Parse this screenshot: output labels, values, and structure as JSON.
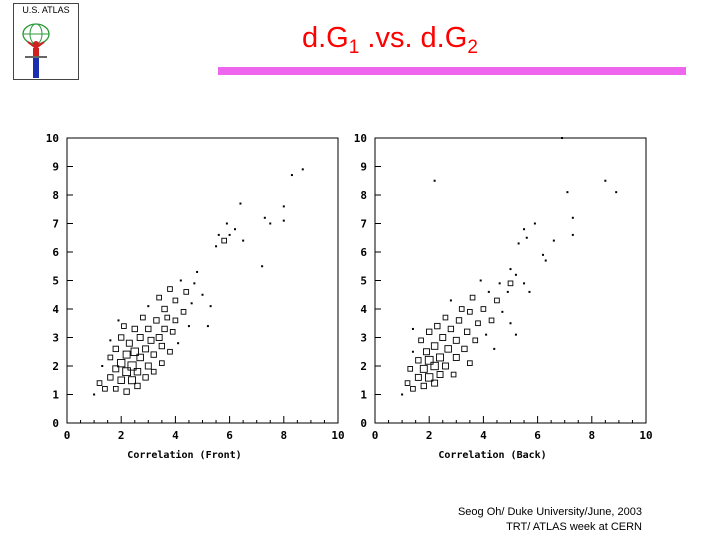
{
  "logo": {
    "text": "U.S. ATLAS"
  },
  "title": {
    "main_a": "d.G",
    "sub_a": "1",
    "middle": " .vs. d.G",
    "sub_b": "2"
  },
  "footer": {
    "line1": "Seog Oh/ Duke University/June, 2003",
    "line2": "TRT/ ATLAS week at CERN"
  },
  "colors": {
    "title": "#ff0000",
    "title_bar": "#ee66ee",
    "marks": "#000000"
  },
  "chart_data": [
    {
      "type": "scatter",
      "title": "",
      "xlabel": "Correlation (Front)",
      "ylabel": "",
      "xlim": [
        0,
        10
      ],
      "ylim": [
        0,
        10
      ],
      "xticks": [
        "0",
        "2",
        "4",
        "6",
        "8",
        "10"
      ],
      "yticks": [
        "0",
        "1",
        "2",
        "3",
        "4",
        "5",
        "6",
        "7",
        "8",
        "9",
        "10"
      ],
      "grid": false,
      "marker_style": "box size proportional to count",
      "points": [
        {
          "x": 1.0,
          "y": 1.0,
          "n": 1
        },
        {
          "x": 1.2,
          "y": 1.4,
          "n": 2
        },
        {
          "x": 1.4,
          "y": 1.2,
          "n": 2
        },
        {
          "x": 1.3,
          "y": 2.0,
          "n": 1
        },
        {
          "x": 1.6,
          "y": 1.6,
          "n": 3
        },
        {
          "x": 1.6,
          "y": 2.3,
          "n": 2
        },
        {
          "x": 1.6,
          "y": 2.9,
          "n": 1
        },
        {
          "x": 1.8,
          "y": 1.2,
          "n": 2
        },
        {
          "x": 1.8,
          "y": 1.9,
          "n": 4
        },
        {
          "x": 1.8,
          "y": 2.6,
          "n": 3
        },
        {
          "x": 1.9,
          "y": 3.6,
          "n": 1
        },
        {
          "x": 2.0,
          "y": 1.5,
          "n": 5
        },
        {
          "x": 2.0,
          "y": 2.1,
          "n": 7
        },
        {
          "x": 2.0,
          "y": 3.0,
          "n": 3
        },
        {
          "x": 2.1,
          "y": 3.4,
          "n": 2
        },
        {
          "x": 2.2,
          "y": 1.1,
          "n": 3
        },
        {
          "x": 2.2,
          "y": 1.8,
          "n": 8
        },
        {
          "x": 2.2,
          "y": 2.4,
          "n": 6
        },
        {
          "x": 2.3,
          "y": 2.8,
          "n": 4
        },
        {
          "x": 2.4,
          "y": 1.5,
          "n": 6
        },
        {
          "x": 2.4,
          "y": 2.0,
          "n": 9
        },
        {
          "x": 2.5,
          "y": 2.5,
          "n": 7
        },
        {
          "x": 2.5,
          "y": 3.3,
          "n": 3
        },
        {
          "x": 2.6,
          "y": 1.3,
          "n": 3
        },
        {
          "x": 2.6,
          "y": 1.8,
          "n": 5
        },
        {
          "x": 2.7,
          "y": 2.3,
          "n": 5
        },
        {
          "x": 2.7,
          "y": 3.0,
          "n": 4
        },
        {
          "x": 2.8,
          "y": 3.7,
          "n": 2
        },
        {
          "x": 2.9,
          "y": 1.6,
          "n": 3
        },
        {
          "x": 2.9,
          "y": 2.6,
          "n": 4
        },
        {
          "x": 3.0,
          "y": 2.0,
          "n": 4
        },
        {
          "x": 3.0,
          "y": 3.3,
          "n": 3
        },
        {
          "x": 3.0,
          "y": 4.1,
          "n": 1
        },
        {
          "x": 3.1,
          "y": 2.9,
          "n": 4
        },
        {
          "x": 3.2,
          "y": 1.8,
          "n": 2
        },
        {
          "x": 3.2,
          "y": 2.4,
          "n": 3
        },
        {
          "x": 3.3,
          "y": 3.6,
          "n": 3
        },
        {
          "x": 3.4,
          "y": 3.0,
          "n": 4
        },
        {
          "x": 3.4,
          "y": 4.4,
          "n": 2
        },
        {
          "x": 3.5,
          "y": 2.1,
          "n": 2
        },
        {
          "x": 3.5,
          "y": 2.7,
          "n": 3
        },
        {
          "x": 3.6,
          "y": 3.3,
          "n": 3
        },
        {
          "x": 3.6,
          "y": 4.0,
          "n": 3
        },
        {
          "x": 3.7,
          "y": 3.7,
          "n": 2
        },
        {
          "x": 3.8,
          "y": 2.5,
          "n": 2
        },
        {
          "x": 3.8,
          "y": 4.7,
          "n": 2
        },
        {
          "x": 3.9,
          "y": 3.2,
          "n": 2
        },
        {
          "x": 4.0,
          "y": 4.3,
          "n": 2
        },
        {
          "x": 4.0,
          "y": 3.6,
          "n": 2
        },
        {
          "x": 4.1,
          "y": 2.8,
          "n": 1
        },
        {
          "x": 4.2,
          "y": 5.0,
          "n": 1
        },
        {
          "x": 4.3,
          "y": 3.9,
          "n": 2
        },
        {
          "x": 4.4,
          "y": 4.6,
          "n": 2
        },
        {
          "x": 4.5,
          "y": 3.4,
          "n": 1
        },
        {
          "x": 4.6,
          "y": 4.2,
          "n": 1
        },
        {
          "x": 4.7,
          "y": 4.9,
          "n": 1
        },
        {
          "x": 4.8,
          "y": 5.3,
          "n": 1
        },
        {
          "x": 5.0,
          "y": 4.5,
          "n": 1
        },
        {
          "x": 5.2,
          "y": 3.4,
          "n": 1
        },
        {
          "x": 5.3,
          "y": 4.1,
          "n": 1
        },
        {
          "x": 5.5,
          "y": 6.2,
          "n": 1
        },
        {
          "x": 5.6,
          "y": 6.6,
          "n": 1
        },
        {
          "x": 5.8,
          "y": 6.4,
          "n": 2
        },
        {
          "x": 5.9,
          "y": 7.0,
          "n": 1
        },
        {
          "x": 6.0,
          "y": 6.6,
          "n": 1
        },
        {
          "x": 6.2,
          "y": 6.8,
          "n": 1
        },
        {
          "x": 6.4,
          "y": 7.7,
          "n": 1
        },
        {
          "x": 6.5,
          "y": 6.4,
          "n": 1
        },
        {
          "x": 7.2,
          "y": 5.5,
          "n": 1
        },
        {
          "x": 7.3,
          "y": 7.2,
          "n": 1
        },
        {
          "x": 7.5,
          "y": 7.0,
          "n": 1
        },
        {
          "x": 8.0,
          "y": 7.1,
          "n": 1
        },
        {
          "x": 8.0,
          "y": 7.6,
          "n": 1
        },
        {
          "x": 8.3,
          "y": 8.7,
          "n": 1
        },
        {
          "x": 8.7,
          "y": 8.9,
          "n": 1
        }
      ]
    },
    {
      "type": "scatter",
      "title": "",
      "xlabel": "Correlation (Back)",
      "ylabel": "",
      "xlim": [
        0,
        10
      ],
      "ylim": [
        0,
        10
      ],
      "xticks": [
        "0",
        "2",
        "4",
        "6",
        "8",
        "10"
      ],
      "yticks": [
        "0",
        "1",
        "2",
        "3",
        "4",
        "5",
        "6",
        "7",
        "8",
        "9",
        "10"
      ],
      "grid": false,
      "marker_style": "box size proportional to count",
      "points": [
        {
          "x": 1.0,
          "y": 1.0,
          "n": 1
        },
        {
          "x": 1.2,
          "y": 1.4,
          "n": 2
        },
        {
          "x": 1.3,
          "y": 1.9,
          "n": 2
        },
        {
          "x": 1.4,
          "y": 1.2,
          "n": 2
        },
        {
          "x": 1.4,
          "y": 2.5,
          "n": 1
        },
        {
          "x": 1.4,
          "y": 3.3,
          "n": 1
        },
        {
          "x": 1.6,
          "y": 1.6,
          "n": 4
        },
        {
          "x": 1.6,
          "y": 2.2,
          "n": 3
        },
        {
          "x": 1.7,
          "y": 2.9,
          "n": 2
        },
        {
          "x": 1.8,
          "y": 1.3,
          "n": 3
        },
        {
          "x": 1.8,
          "y": 1.9,
          "n": 6
        },
        {
          "x": 1.9,
          "y": 2.5,
          "n": 4
        },
        {
          "x": 2.0,
          "y": 1.6,
          "n": 7
        },
        {
          "x": 2.0,
          "y": 2.2,
          "n": 8
        },
        {
          "x": 2.0,
          "y": 3.2,
          "n": 3
        },
        {
          "x": 2.2,
          "y": 1.4,
          "n": 4
        },
        {
          "x": 2.2,
          "y": 2.0,
          "n": 7
        },
        {
          "x": 2.2,
          "y": 2.7,
          "n": 5
        },
        {
          "x": 2.3,
          "y": 3.4,
          "n": 3
        },
        {
          "x": 2.4,
          "y": 1.7,
          "n": 4
        },
        {
          "x": 2.4,
          "y": 2.3,
          "n": 6
        },
        {
          "x": 2.5,
          "y": 3.0,
          "n": 4
        },
        {
          "x": 2.6,
          "y": 3.7,
          "n": 2
        },
        {
          "x": 2.6,
          "y": 2.0,
          "n": 4
        },
        {
          "x": 2.7,
          "y": 2.6,
          "n": 5
        },
        {
          "x": 2.8,
          "y": 3.3,
          "n": 3
        },
        {
          "x": 2.8,
          "y": 4.3,
          "n": 1
        },
        {
          "x": 2.9,
          "y": 1.7,
          "n": 2
        },
        {
          "x": 3.0,
          "y": 2.3,
          "n": 4
        },
        {
          "x": 3.0,
          "y": 2.9,
          "n": 4
        },
        {
          "x": 3.1,
          "y": 3.6,
          "n": 3
        },
        {
          "x": 3.2,
          "y": 4.0,
          "n": 2
        },
        {
          "x": 3.3,
          "y": 2.6,
          "n": 3
        },
        {
          "x": 3.4,
          "y": 3.2,
          "n": 3
        },
        {
          "x": 3.5,
          "y": 2.1,
          "n": 2
        },
        {
          "x": 3.5,
          "y": 3.9,
          "n": 2
        },
        {
          "x": 3.6,
          "y": 4.4,
          "n": 2
        },
        {
          "x": 3.7,
          "y": 2.9,
          "n": 2
        },
        {
          "x": 3.8,
          "y": 3.5,
          "n": 2
        },
        {
          "x": 3.9,
          "y": 5.0,
          "n": 1
        },
        {
          "x": 4.0,
          "y": 4.0,
          "n": 2
        },
        {
          "x": 4.1,
          "y": 3.1,
          "n": 1
        },
        {
          "x": 4.2,
          "y": 4.6,
          "n": 1
        },
        {
          "x": 4.3,
          "y": 3.6,
          "n": 2
        },
        {
          "x": 4.4,
          "y": 2.6,
          "n": 1
        },
        {
          "x": 4.5,
          "y": 4.3,
          "n": 2
        },
        {
          "x": 4.6,
          "y": 4.9,
          "n": 1
        },
        {
          "x": 4.7,
          "y": 3.9,
          "n": 1
        },
        {
          "x": 4.9,
          "y": 4.6,
          "n": 1
        },
        {
          "x": 5.0,
          "y": 5.4,
          "n": 1
        },
        {
          "x": 5.0,
          "y": 4.9,
          "n": 2
        },
        {
          "x": 5.2,
          "y": 5.2,
          "n": 1
        },
        {
          "x": 5.5,
          "y": 4.9,
          "n": 1
        },
        {
          "x": 5.2,
          "y": 3.1,
          "n": 1
        },
        {
          "x": 5.0,
          "y": 3.5,
          "n": 1
        },
        {
          "x": 5.7,
          "y": 4.6,
          "n": 1
        },
        {
          "x": 2.2,
          "y": 8.5,
          "n": 1
        },
        {
          "x": 5.3,
          "y": 6.3,
          "n": 1
        },
        {
          "x": 5.5,
          "y": 6.8,
          "n": 1
        },
        {
          "x": 5.6,
          "y": 6.5,
          "n": 1
        },
        {
          "x": 5.9,
          "y": 7.0,
          "n": 1
        },
        {
          "x": 6.2,
          "y": 5.9,
          "n": 1
        },
        {
          "x": 6.3,
          "y": 5.7,
          "n": 1
        },
        {
          "x": 6.6,
          "y": 6.4,
          "n": 1
        },
        {
          "x": 6.9,
          "y": 10.0,
          "n": 1
        },
        {
          "x": 7.1,
          "y": 8.1,
          "n": 1
        },
        {
          "x": 7.3,
          "y": 7.2,
          "n": 1
        },
        {
          "x": 7.3,
          "y": 6.6,
          "n": 1
        },
        {
          "x": 8.5,
          "y": 8.5,
          "n": 1
        },
        {
          "x": 8.9,
          "y": 8.1,
          "n": 1
        }
      ]
    }
  ]
}
